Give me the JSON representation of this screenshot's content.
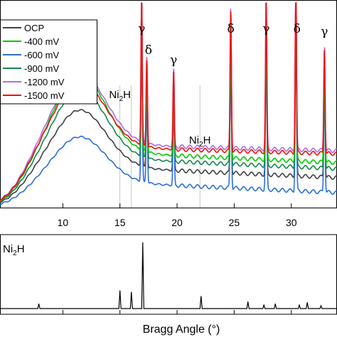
{
  "chart_data": [
    {
      "type": "line",
      "panel": "measured-xrd",
      "xlim": [
        4.5,
        34
      ],
      "xticks": [
        10,
        15,
        20,
        25,
        30
      ],
      "y_axis_labeled": false,
      "legend_position": "top-left",
      "legend": [
        {
          "name": "OCP",
          "color": "#404040"
        },
        {
          "name": "-400 mV",
          "color": "#00cc00"
        },
        {
          "name": "-600 mV",
          "color": "#2b6fd6"
        },
        {
          "name": "-900 mV",
          "color": "#13884a"
        },
        {
          "name": "-1200 mV",
          "color": "#b36ae2"
        },
        {
          "name": "-1500 mV",
          "color": "#ee1111"
        }
      ],
      "series": [
        {
          "name": "OCP",
          "baseline": 0.3,
          "hump": 0.38,
          "decay": 0.1,
          "peak_scale": 0.75
        },
        {
          "name": "-400 mV",
          "baseline": 0.4,
          "hump": 0.52,
          "decay": 0.1,
          "peak_scale": 0.85
        },
        {
          "name": "-600 mV",
          "baseline": 0.2,
          "hump": 0.3,
          "decay": 0.1,
          "peak_scale": 1.0
        },
        {
          "name": "-900 mV",
          "baseline": 0.36,
          "hump": 0.46,
          "decay": 0.1,
          "peak_scale": 0.85
        },
        {
          "name": "-1200 mV",
          "baseline": 0.44,
          "hump": 0.48,
          "decay": 0.06,
          "peak_scale": 0.95
        },
        {
          "name": "-1500 mV",
          "baseline": 0.42,
          "hump": 0.44,
          "decay": 0.06,
          "peak_scale": 0.95
        }
      ],
      "peaks": [
        {
          "x": 16.9,
          "height": 1.05,
          "width": 0.08
        },
        {
          "x": 17.35,
          "height": 0.62,
          "width": 0.08
        },
        {
          "x": 19.7,
          "height": 0.55,
          "width": 0.08
        },
        {
          "x": 24.7,
          "height": 1.0,
          "width": 0.08
        },
        {
          "x": 27.8,
          "height": 1.1,
          "width": 0.08
        },
        {
          "x": 30.4,
          "height": 1.25,
          "width": 0.08
        },
        {
          "x": 32.9,
          "height": 0.75,
          "width": 0.08
        }
      ],
      "annotations": [
        {
          "text": "γ",
          "x": 16.9,
          "kind": "phase"
        },
        {
          "text": "δ",
          "x": 17.5,
          "kind": "phase"
        },
        {
          "text": "γ",
          "x": 19.7,
          "kind": "phase"
        },
        {
          "text": "δ",
          "x": 24.7,
          "kind": "phase"
        },
        {
          "text": "γ",
          "x": 27.8,
          "kind": "phase"
        },
        {
          "text": "δ",
          "x": 30.5,
          "kind": "phase"
        },
        {
          "text": "γ",
          "x": 32.9,
          "kind": "phase"
        }
      ],
      "ni2h_labels": [
        {
          "x": 15.0
        },
        {
          "x": 22.0
        }
      ],
      "reference_lines_x": [
        15.0,
        16.0,
        22.0
      ]
    },
    {
      "type": "line",
      "panel": "reference-pattern",
      "label_main": "Ni",
      "label_sub": "2",
      "label_tail": "H",
      "xlabel": "Bragg Angle (°)",
      "peaks": [
        {
          "x": 7.9,
          "height": 0.07
        },
        {
          "x": 15.0,
          "height": 0.26
        },
        {
          "x": 16.0,
          "height": 0.24
        },
        {
          "x": 17.0,
          "height": 0.95
        },
        {
          "x": 22.1,
          "height": 0.18
        },
        {
          "x": 26.2,
          "height": 0.1
        },
        {
          "x": 27.6,
          "height": 0.05
        },
        {
          "x": 28.6,
          "height": 0.07
        },
        {
          "x": 30.7,
          "height": 0.05
        },
        {
          "x": 31.4,
          "height": 0.09
        },
        {
          "x": 32.6,
          "height": 0.04
        }
      ]
    }
  ]
}
